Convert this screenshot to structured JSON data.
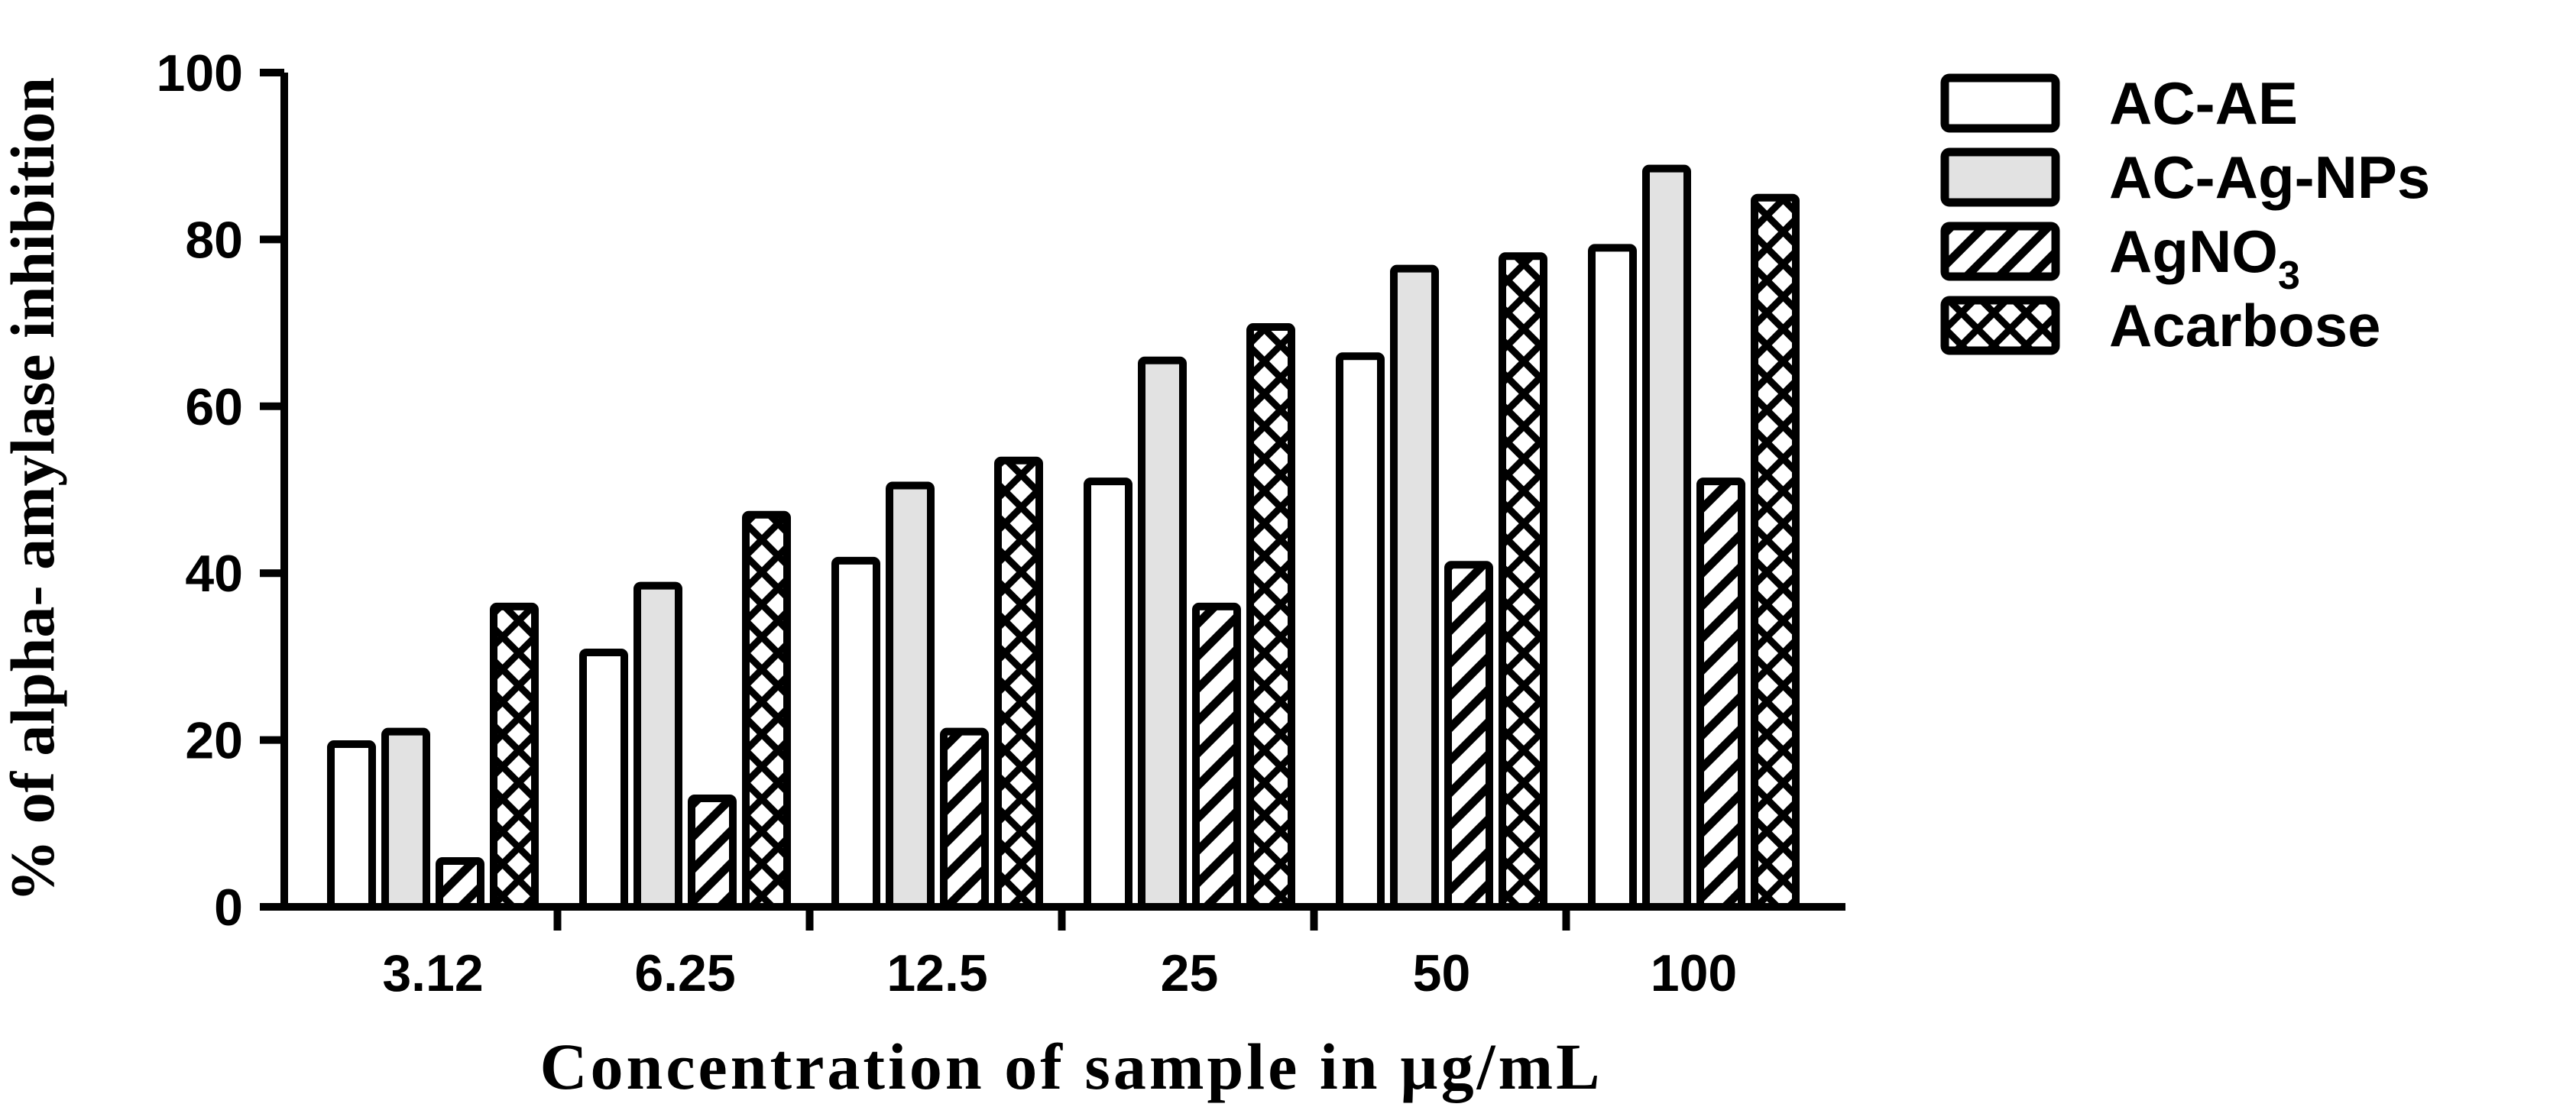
{
  "chart_data": {
    "type": "bar",
    "xlabel": "Concentration of sample in µg/mL",
    "ylabel": "% of alpha- amylase inhibition",
    "ylim": [
      0,
      100
    ],
    "yticks": [
      "0",
      "20",
      "40",
      "60",
      "80",
      "100"
    ],
    "categories": [
      "3.12",
      "6.25",
      "12.5",
      "25",
      "50",
      "100"
    ],
    "series": [
      {
        "name": "AC-AE",
        "fill": "white",
        "values": [
          19.5,
          30.5,
          41.5,
          51,
          66,
          79
        ]
      },
      {
        "name": "AC-Ag-NPs",
        "fill": "lightgray",
        "values": [
          21,
          38.5,
          50.5,
          65.5,
          76.5,
          88.5
        ]
      },
      {
        "name": "AgNO",
        "name_subscript": "3",
        "fill": "diagonal-hatch",
        "values": [
          5.5,
          13,
          21,
          36,
          41,
          51
        ]
      },
      {
        "name": "Acarbose",
        "fill": "cross-hatch",
        "values": [
          36,
          47,
          53.5,
          69.5,
          78,
          85
        ]
      }
    ],
    "colors": {
      "bar_stroke": "#000000",
      "lightgray": "#e2e2e2",
      "white": "#ffffff"
    },
    "legend": "right",
    "grid": false
  }
}
